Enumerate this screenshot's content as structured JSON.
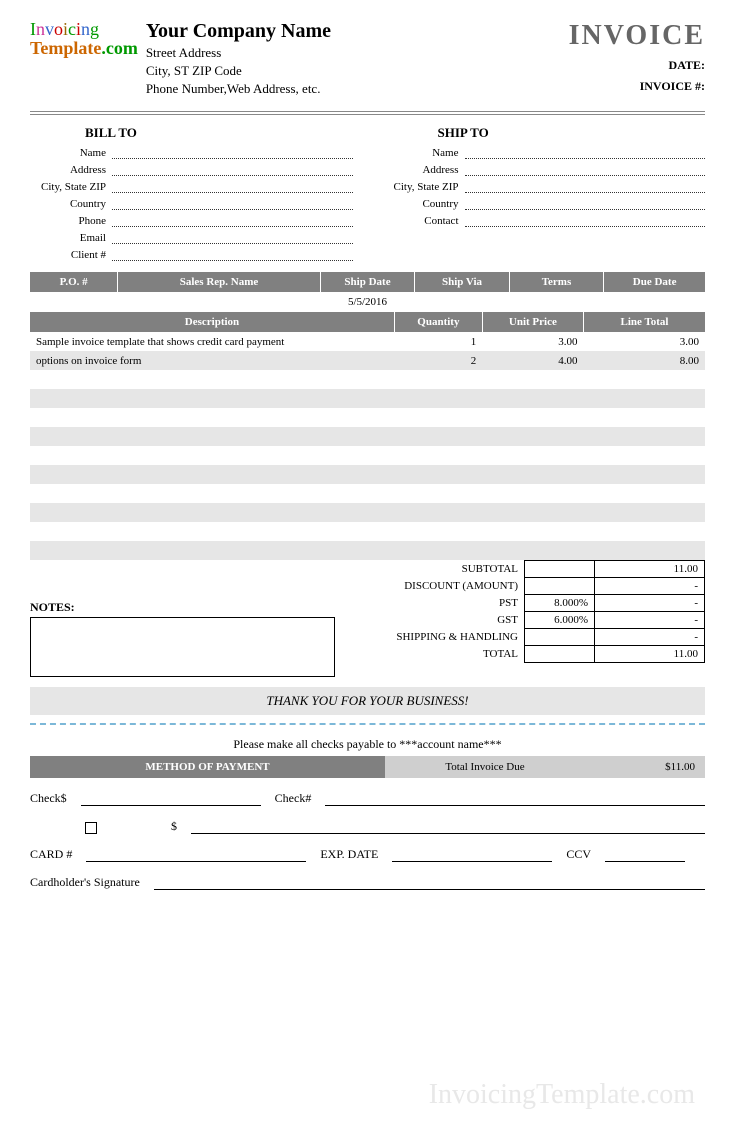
{
  "header": {
    "company_name": "Your Company Name",
    "address_line1": "Street Address",
    "address_line2": "City, ST  ZIP Code",
    "address_line3": "Phone Number,Web Address, etc.",
    "doc_title": "INVOICE",
    "date_label": "DATE:",
    "date_value": "",
    "invoice_no_label": "INVOICE #:",
    "invoice_no_value": ""
  },
  "bill_to": {
    "title": "BILL TO",
    "fields": {
      "name": "Name",
      "address": "Address",
      "csz": "City, State ZIP",
      "country": "Country",
      "phone": "Phone",
      "email": "Email",
      "client": "Client #"
    }
  },
  "ship_to": {
    "title": "SHIP TO",
    "fields": {
      "name": "Name",
      "address": "Address",
      "csz": "City, State ZIP",
      "country": "Country",
      "contact": "Contact"
    }
  },
  "meta_table": {
    "headers": {
      "po": "P.O. #",
      "rep": "Sales Rep. Name",
      "ship_date": "Ship Date",
      "ship_via": "Ship Via",
      "terms": "Terms",
      "due": "Due Date"
    },
    "row": {
      "po": "",
      "rep": "",
      "ship_date": "5/5/2016",
      "ship_via": "",
      "terms": "",
      "due": ""
    }
  },
  "items": {
    "headers": {
      "desc": "Description",
      "qty": "Quantity",
      "price": "Unit Price",
      "total": "Line Total"
    },
    "col_widths": {
      "desc": "54%",
      "qty": "13%",
      "price": "15%",
      "total": "18%"
    },
    "rows": [
      {
        "desc": "Sample invoice template that shows credit card payment",
        "qty": "1",
        "price": "3.00",
        "total": "3.00"
      },
      {
        "desc": "options on invoice form",
        "qty": "2",
        "price": "4.00",
        "total": "8.00"
      },
      {
        "desc": "",
        "qty": "",
        "price": "",
        "total": ""
      },
      {
        "desc": "",
        "qty": "",
        "price": "",
        "total": ""
      },
      {
        "desc": "",
        "qty": "",
        "price": "",
        "total": ""
      },
      {
        "desc": "",
        "qty": "",
        "price": "",
        "total": ""
      },
      {
        "desc": "",
        "qty": "",
        "price": "",
        "total": ""
      },
      {
        "desc": "",
        "qty": "",
        "price": "",
        "total": ""
      },
      {
        "desc": "",
        "qty": "",
        "price": "",
        "total": ""
      },
      {
        "desc": "",
        "qty": "",
        "price": "",
        "total": ""
      },
      {
        "desc": "",
        "qty": "",
        "price": "",
        "total": ""
      },
      {
        "desc": "",
        "qty": "",
        "price": "",
        "total": ""
      }
    ],
    "stripe_color": "#e6e6e6"
  },
  "totals": {
    "rows": [
      {
        "label": "SUBTOTAL",
        "mid": "",
        "value": "11.00"
      },
      {
        "label": "DISCOUNT (AMOUNT)",
        "mid": "",
        "value": "-"
      },
      {
        "label": "PST",
        "mid": "8.000%",
        "value": "-"
      },
      {
        "label": "GST",
        "mid": "6.000%",
        "value": "-"
      },
      {
        "label": "SHIPPING & HANDLING",
        "mid": "",
        "value": "-"
      },
      {
        "label": "TOTAL",
        "mid": "",
        "value": "11.00"
      }
    ]
  },
  "notes_label": "NOTES:",
  "thanks": "THANK YOU FOR YOUR BUSINESS!",
  "payable": "Please make all checks payable to ***account name***",
  "payment": {
    "method_hdr": "METHOD OF PAYMENT",
    "due_hdr": "Total Invoice Due",
    "due_value": "$11.00",
    "check_amount_lbl": "Check$",
    "check_no_lbl": "Check#",
    "dollar": "$",
    "card_lbl": "CARD #",
    "exp_lbl": "EXP. DATE",
    "ccv_lbl": "CCV",
    "sig_lbl": "Cardholder's Signature"
  },
  "colors": {
    "header_bg": "#808080",
    "header_fg": "#ffffff",
    "alt_bg": "#cfcfcf",
    "dash": "#7cb8d8"
  }
}
